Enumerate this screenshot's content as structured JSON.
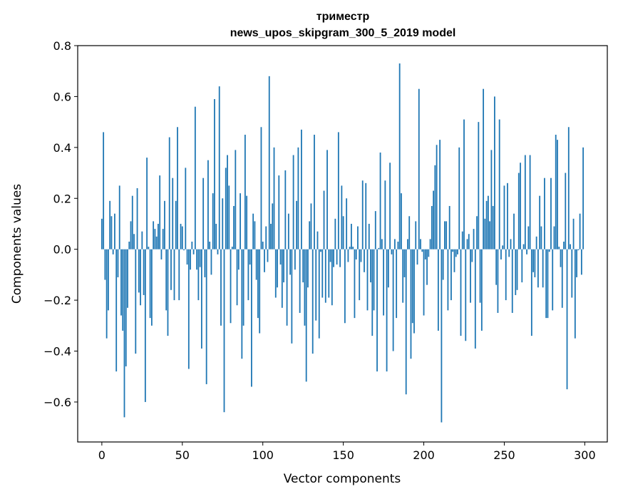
{
  "chart_data": {
    "type": "bar",
    "title": [
      "триместр",
      "news_upos_skipgram_300_5_2019 model"
    ],
    "xlabel": "Vector components",
    "ylabel": "Components values",
    "xlim": [
      -15,
      314
    ],
    "ylim": [
      -0.757,
      0.8
    ],
    "xticks": [
      0,
      50,
      100,
      150,
      200,
      250,
      300
    ],
    "xtick_labels": [
      "0",
      "50",
      "100",
      "150",
      "200",
      "250",
      "300"
    ],
    "yticks": [
      -0.6,
      -0.4,
      -0.2,
      0.0,
      0.2,
      0.4,
      0.6,
      0.8
    ],
    "ytick_labels": [
      "−0.6",
      "−0.4",
      "−0.2",
      "0.0",
      "0.2",
      "0.4",
      "0.6",
      "0.8"
    ],
    "grid": false,
    "color": "#1f77b4",
    "values": [
      0.12,
      0.46,
      -0.12,
      -0.35,
      -0.24,
      0.19,
      0.13,
      -0.02,
      0.14,
      -0.48,
      -0.11,
      0.25,
      -0.26,
      -0.32,
      -0.66,
      -0.46,
      -0.23,
      0.03,
      0.11,
      0.21,
      0.06,
      -0.41,
      0.24,
      -0.17,
      -0.22,
      0.07,
      -0.18,
      -0.6,
      0.36,
      0.01,
      -0.27,
      -0.3,
      0.11,
      0.08,
      0.05,
      0.1,
      0.29,
      -0.04,
      0.08,
      0.19,
      -0.24,
      -0.34,
      0.44,
      -0.16,
      0.28,
      -0.2,
      0.19,
      0.48,
      -0.2,
      0.1,
      0.09,
      -0.004,
      0.32,
      -0.06,
      -0.47,
      -0.08,
      0.03,
      -0.02,
      0.56,
      -0.08,
      -0.2,
      -0.07,
      -0.39,
      0.28,
      -0.11,
      -0.53,
      0.35,
      0.03,
      -0.1,
      0.22,
      0.59,
      0.1,
      -0.02,
      0.64,
      -0.3,
      0.2,
      -0.64,
      0.32,
      0.37,
      0.25,
      -0.29,
      0.01,
      0.17,
      0.39,
      -0.22,
      -0.08,
      0.22,
      -0.43,
      -0.3,
      0.45,
      0.21,
      -0.2,
      -0.06,
      -0.54,
      0.14,
      0.11,
      -0.12,
      -0.27,
      -0.33,
      0.48,
      0.03,
      -0.09,
      0.09,
      -0.05,
      0.68,
      0.1,
      0.18,
      0.4,
      -0.19,
      -0.15,
      0.29,
      -0.06,
      -0.23,
      -0.13,
      0.31,
      -0.3,
      0.14,
      -0.1,
      -0.37,
      0.37,
      -0.08,
      0.19,
      0.4,
      -0.25,
      0.47,
      -0.13,
      -0.3,
      -0.52,
      -0.15,
      0.11,
      0.18,
      -0.41,
      0.45,
      -0.28,
      0.07,
      -0.35,
      -0.01,
      -0.19,
      0.23,
      -0.21,
      0.39,
      -0.19,
      -0.05,
      -0.22,
      -0.07,
      0.12,
      -0.06,
      0.46,
      -0.07,
      0.25,
      0.13,
      -0.29,
      0.2,
      -0.05,
      0.01,
      0.1,
      0.01,
      -0.27,
      -0.04,
      0.09,
      -0.2,
      -0.05,
      0.27,
      -0.09,
      0.26,
      -0.24,
      0.1,
      -0.13,
      -0.34,
      -0.24,
      0.15,
      -0.48,
      0.005,
      0.38,
      0.04,
      -0.26,
      0.27,
      -0.48,
      -0.15,
      0.34,
      -0.02,
      -0.4,
      0.04,
      -0.27,
      0.03,
      0.73,
      0.22,
      -0.21,
      -0.11,
      -0.57,
      0.04,
      0.13,
      -0.43,
      -0.29,
      -0.33,
      0.11,
      -0.06,
      0.63,
      0.04,
      -0.01,
      -0.26,
      -0.04,
      -0.14,
      -0.03,
      0.04,
      0.17,
      0.23,
      0.33,
      0.41,
      -0.32,
      0.43,
      -0.68,
      -0.12,
      0.11,
      0.11,
      -0.24,
      0.17,
      -0.2,
      -0.01,
      -0.09,
      -0.03,
      -0.02,
      0.4,
      -0.34,
      0.07,
      0.51,
      -0.36,
      0.04,
      0.06,
      -0.21,
      -0.05,
      0.08,
      -0.39,
      0.13,
      0.5,
      -0.21,
      -0.32,
      0.63,
      0.12,
      0.19,
      0.21,
      0.11,
      0.39,
      0.17,
      0.6,
      -0.14,
      -0.25,
      0.51,
      -0.04,
      0.015,
      0.25,
      -0.2,
      0.26,
      -0.03,
      0.04,
      -0.25,
      0.14,
      -0.18,
      -0.16,
      0.3,
      0.34,
      -0.13,
      0.02,
      0.37,
      -0.02,
      0.09,
      0.37,
      -0.34,
      -0.09,
      -0.11,
      0.05,
      -0.15,
      0.21,
      0.09,
      -0.15,
      0.28,
      -0.27,
      -0.27,
      -0.01,
      0.28,
      -0.24,
      0.09,
      0.45,
      0.43,
      0.01,
      -0.07,
      -0.23,
      0.03,
      0.3,
      -0.55,
      0.48,
      0.02,
      -0.19,
      0.12,
      -0.35,
      -0.11,
      -0.004,
      0.14,
      -0.1,
      0.4
    ]
  }
}
